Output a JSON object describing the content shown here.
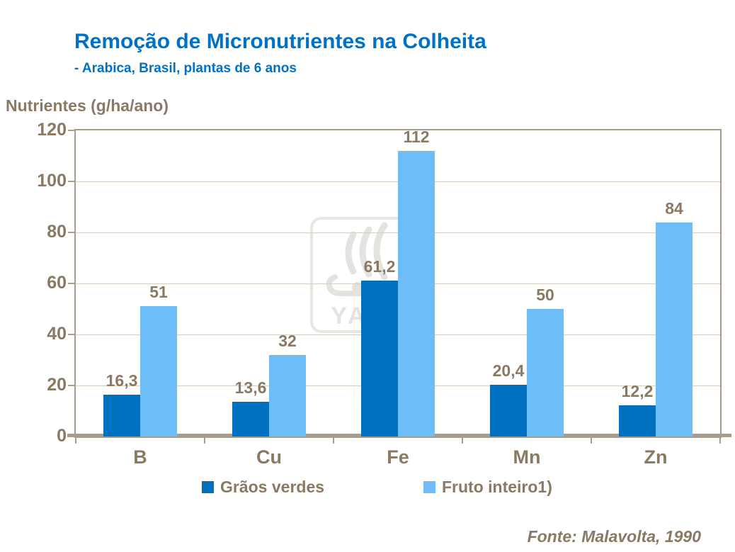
{
  "header": {
    "title": "Remoção de Micronutrientes na Colheita",
    "subtitle": "- Arabica, Brasil, plantas de 6 anos"
  },
  "chart_data": {
    "type": "bar",
    "categories": [
      "B",
      "Cu",
      "Fe",
      "Mn",
      "Zn"
    ],
    "series": [
      {
        "name": "Grãos verdes",
        "color": "#0070C0",
        "values": [
          16.3,
          13.6,
          61.2,
          20.4,
          12.2
        ],
        "labels": [
          "16,3",
          "13,6",
          "61,2",
          "20,4",
          "12,2"
        ]
      },
      {
        "name": "Fruto inteiro1)",
        "color": "#6CBDF8",
        "values": [
          51,
          32,
          112,
          50,
          84
        ],
        "labels": [
          "51",
          "32",
          "112",
          "50",
          "84"
        ]
      }
    ],
    "title": "Remoção de Micronutrientes na Colheita",
    "xlabel": "",
    "ylabel": "Nutrientes (g/ha/ano)",
    "ylim": [
      0,
      120
    ],
    "yticks": [
      0,
      20,
      40,
      60,
      80,
      100,
      120
    ],
    "grid": true,
    "legend_position": "bottom"
  },
  "footer": {
    "source": "Fonte: Malavolta, 1990"
  },
  "watermark": {
    "text": "YARA"
  },
  "colors": {
    "title_blue": "#0072C6",
    "label_brown": "#8A7963",
    "series_dark": "#0070C0",
    "series_light": "#6CBDF8",
    "frame": "#A89C8D",
    "gridline": "#D5CEC2",
    "watermark_gray": "#E5E3E0"
  }
}
